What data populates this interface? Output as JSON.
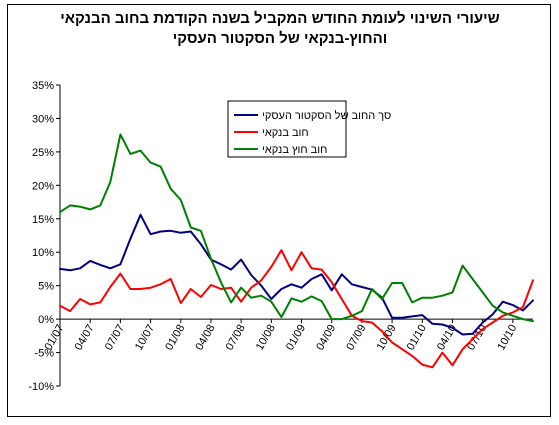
{
  "chart_data": {
    "type": "line",
    "title_lines": [
      "שיעורי השינוי לעומת החודש המקביל בשנה הקודמת בחוב הבנקאי",
      "והחוץ-בנקאי של הסקטור העסקי"
    ],
    "x_tick_labels": [
      "01/07",
      "04/07",
      "07/07",
      "10/07",
      "01/08",
      "04/08",
      "07/08",
      "10/08",
      "01/09",
      "04/09",
      "07/09",
      "10/09",
      "01/10",
      "04/10",
      "07/10",
      "10/10"
    ],
    "y_tick_labels": [
      "35%",
      "30%",
      "25%",
      "20%",
      "15%",
      "10%",
      "5%",
      "0%",
      "-5%",
      "-10%"
    ],
    "ylim": [
      -10,
      35
    ],
    "y_step": 5,
    "n_months": 48,
    "grid": false,
    "legend_position": "top-center",
    "series": [
      {
        "name": "סך החוב של הסקטור העסקי",
        "color": "#000080",
        "values": [
          7.5,
          7.3,
          7.6,
          8.7,
          8.1,
          7.6,
          8.2,
          12.0,
          15.6,
          12.7,
          13.1,
          13.2,
          12.9,
          13.1,
          11.2,
          8.9,
          8.2,
          7.4,
          8.9,
          6.6,
          5.0,
          3.0,
          4.5,
          5.2,
          4.7,
          6.0,
          6.7,
          4.3,
          6.7,
          5.2,
          4.8,
          4.4,
          3.2,
          0.2,
          0.2,
          0.4,
          0.6,
          -0.7,
          -0.8,
          -1.3,
          -2.3,
          -2.2,
          -0.5,
          0.7,
          2.6,
          2.1,
          1.3,
          2.8
        ]
      },
      {
        "name": "חוב בנקאי",
        "color": "#ff0000",
        "values": [
          2.0,
          1.2,
          3.0,
          2.2,
          2.5,
          4.8,
          6.8,
          4.5,
          4.5,
          4.7,
          5.2,
          6.0,
          2.4,
          4.5,
          3.3,
          5.1,
          4.5,
          4.7,
          2.6,
          4.7,
          5.8,
          7.8,
          10.3,
          7.3,
          10.0,
          7.6,
          7.4,
          5.5,
          3.0,
          0.5,
          -0.3,
          -0.5,
          -1.8,
          -3.5,
          -4.5,
          -5.5,
          -6.8,
          -7.2,
          -5.0,
          -6.9,
          -4.5,
          -3.0,
          -1.5,
          -0.5,
          0.5,
          1.0,
          1.8,
          5.8
        ]
      },
      {
        "name": "חוב חוץ בנקאי",
        "color": "#008000",
        "values": [
          16.0,
          17.0,
          16.8,
          16.4,
          17.0,
          20.5,
          27.6,
          24.7,
          25.2,
          23.4,
          22.8,
          19.5,
          17.8,
          13.7,
          13.2,
          9.0,
          5.5,
          2.5,
          4.7,
          3.2,
          3.5,
          2.6,
          0.3,
          3.1,
          2.6,
          3.4,
          2.7,
          0.0,
          0.0,
          0.5,
          1.2,
          4.5,
          3.0,
          5.4,
          5.4,
          2.5,
          3.2,
          3.2,
          3.5,
          4.0,
          8.0,
          6.0,
          4.0,
          2.0,
          1.0,
          0.5,
          0.0,
          -0.3
        ]
      }
    ]
  }
}
